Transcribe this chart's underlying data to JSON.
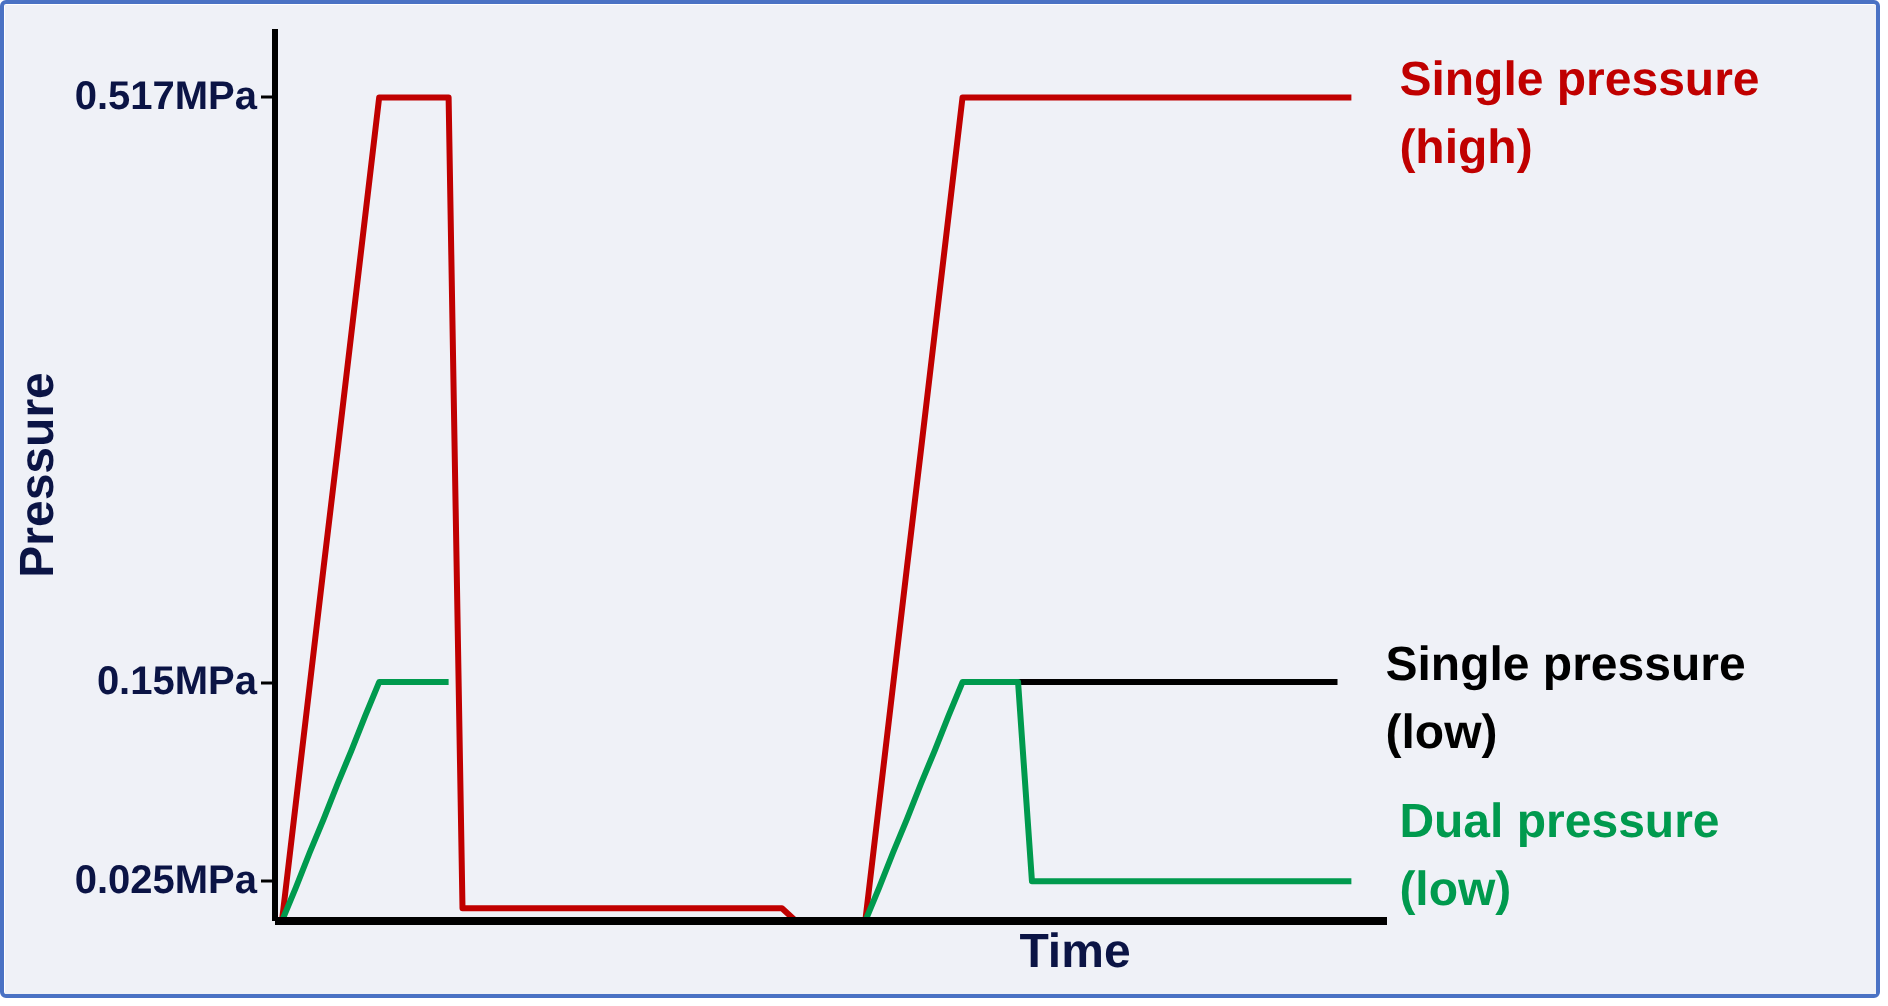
{
  "chart_data": {
    "type": "line",
    "xlabel": "Time",
    "ylabel": "Pressure",
    "ylim": [
      0,
      0.56
    ],
    "yticks": [
      {
        "value": 0.025,
        "label": "0.025MPa"
      },
      {
        "value": 0.15,
        "label": "0.15MPa"
      },
      {
        "value": 0.517,
        "label": "0.517MPa"
      }
    ],
    "tick_labels": "y",
    "grid": false,
    "line_style": "solid",
    "categories": [
      null,
      null,
      null,
      null,
      null,
      null,
      null,
      null,
      null,
      null,
      null,
      null,
      null,
      null,
      null,
      null,
      null,
      null,
      null,
      null,
      null,
      null,
      null,
      null,
      null,
      null,
      null,
      null,
      null,
      null,
      null,
      null,
      null,
      null,
      null,
      null,
      null,
      null,
      null,
      null,
      null,
      null,
      null,
      null,
      null,
      null,
      null,
      null,
      null,
      null,
      null,
      null,
      null,
      null,
      null,
      null,
      null,
      null,
      null,
      null,
      null,
      null,
      null,
      null,
      null,
      null,
      null,
      null,
      null,
      null,
      null,
      null,
      null,
      null,
      null,
      null,
      null,
      null,
      null,
      null
    ],
    "series": [
      {
        "color": "#c00000",
        "values": [
          0,
          0.074,
          0.148,
          0.222,
          0.295,
          0.369,
          0.443,
          0.517,
          0.517,
          0.517,
          0.517,
          0.517,
          0.517,
          0.008,
          0.008,
          0.008,
          0.008,
          0.008,
          0.008,
          0.008,
          0.008,
          0.008,
          0.008,
          0.008,
          0.008,
          0.008,
          0.008,
          0.008,
          0.008,
          0.008,
          0.008,
          0.008,
          0.008,
          0.008,
          0.008,
          0.008,
          0.008,
          0,
          null,
          null,
          null,
          null,
          null,
          null,
          null,
          null,
          null,
          null,
          null,
          null,
          null,
          null,
          null,
          null,
          null,
          null,
          null,
          null,
          null,
          null,
          null,
          null,
          null,
          null,
          null,
          null,
          null,
          null,
          null,
          null,
          null,
          null,
          null,
          null,
          null,
          null,
          null,
          null,
          null,
          null
        ]
      },
      {
        "color": "#009a4e",
        "values": [
          0,
          0.021,
          0.043,
          0.064,
          0.086,
          0.107,
          0.129,
          0.15,
          0.15,
          0.15,
          0.15,
          0.15,
          0.15,
          null,
          null,
          null,
          null,
          null,
          null,
          null,
          null,
          null,
          null,
          null,
          null,
          null,
          null,
          null,
          null,
          null,
          null,
          null,
          null,
          null,
          null,
          null,
          null,
          null,
          null,
          null,
          null,
          null,
          null,
          null,
          null,
          null,
          null,
          null,
          null,
          null,
          null,
          null,
          null,
          null,
          null,
          null,
          null,
          null,
          null,
          null,
          null,
          null,
          null,
          null,
          null,
          null,
          null,
          null,
          null,
          null,
          null,
          null,
          null,
          null,
          null,
          null,
          null,
          null,
          null,
          null
        ]
      },
      {
        "name": "Single pressure (high)",
        "color": "#c00000",
        "values": [
          null,
          null,
          null,
          null,
          null,
          null,
          null,
          null,
          null,
          null,
          null,
          null,
          null,
          null,
          null,
          null,
          null,
          null,
          null,
          null,
          null,
          null,
          null,
          null,
          null,
          null,
          null,
          null,
          null,
          null,
          null,
          null,
          null,
          null,
          null,
          null,
          null,
          null,
          null,
          null,
          null,
          null,
          0,
          0.074,
          0.148,
          0.222,
          0.295,
          0.369,
          0.443,
          0.517,
          0.517,
          0.517,
          0.517,
          0.517,
          0.517,
          0.517,
          0.517,
          0.517,
          0.517,
          0.517,
          0.517,
          0.517,
          0.517,
          0.517,
          0.517,
          0.517,
          0.517,
          0.517,
          0.517,
          0.517,
          0.517,
          0.517,
          0.517,
          0.517,
          0.517,
          0.517,
          0.517,
          0.517,
          null,
          null
        ]
      },
      {
        "name": "Single pressure (low)",
        "color": "#000000",
        "values": [
          null,
          null,
          null,
          null,
          null,
          null,
          null,
          null,
          null,
          null,
          null,
          null,
          null,
          null,
          null,
          null,
          null,
          null,
          null,
          null,
          null,
          null,
          null,
          null,
          null,
          null,
          null,
          null,
          null,
          null,
          null,
          null,
          null,
          null,
          null,
          null,
          null,
          null,
          null,
          null,
          null,
          null,
          null,
          null,
          null,
          null,
          null,
          null,
          null,
          null,
          null,
          null,
          null,
          0.15,
          0.15,
          0.15,
          0.15,
          0.15,
          0.15,
          0.15,
          0.15,
          0.15,
          0.15,
          0.15,
          0.15,
          0.15,
          0.15,
          0.15,
          0.15,
          0.15,
          0.15,
          0.15,
          0.15,
          0.15,
          0.15,
          0.15,
          0.15,
          null,
          null,
          null
        ]
      },
      {
        "name": "Dual pressure (low)",
        "color": "#009a4e",
        "values": [
          null,
          null,
          null,
          null,
          null,
          null,
          null,
          null,
          null,
          null,
          null,
          null,
          null,
          null,
          null,
          null,
          null,
          null,
          null,
          null,
          null,
          null,
          null,
          null,
          null,
          null,
          null,
          null,
          null,
          null,
          null,
          null,
          null,
          null,
          null,
          null,
          null,
          null,
          null,
          null,
          null,
          null,
          0,
          0.021,
          0.043,
          0.064,
          0.086,
          0.107,
          0.129,
          0.15,
          0.15,
          0.15,
          0.15,
          0.15,
          0.025,
          0.025,
          0.025,
          0.025,
          0.025,
          0.025,
          0.025,
          0.025,
          0.025,
          0.025,
          0.025,
          0.025,
          0.025,
          0.025,
          0.025,
          0.025,
          0.025,
          0.025,
          0.025,
          0.025,
          0.025,
          0.025,
          0.025,
          0.025,
          null,
          null
        ]
      }
    ]
  }
}
